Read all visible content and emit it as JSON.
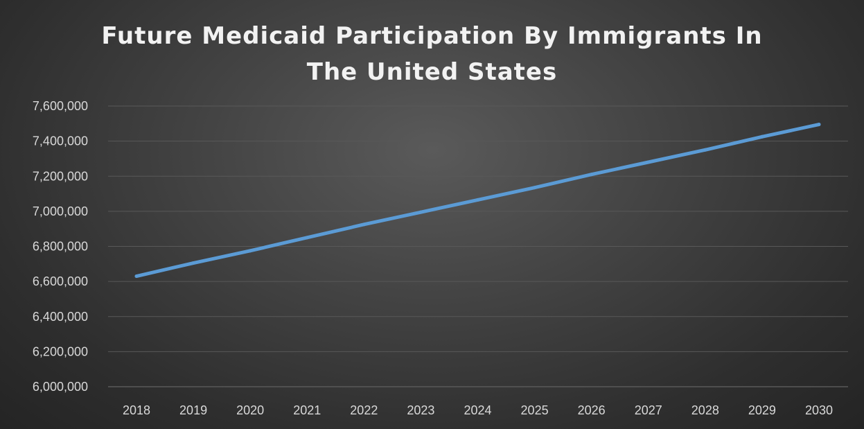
{
  "chart_data": {
    "type": "line",
    "title_lines": [
      "Future Medicaid Participation By Immigrants In",
      "The United States"
    ],
    "xlabel": "",
    "ylabel": "",
    "categories": [
      "2018",
      "2019",
      "2020",
      "2021",
      "2022",
      "2023",
      "2024",
      "2025",
      "2026",
      "2027",
      "2028",
      "2029",
      "2030"
    ],
    "series": [
      {
        "values": [
          6630000,
          6705000,
          6775000,
          6850000,
          6925000,
          6995000,
          7065000,
          7135000,
          7210000,
          7280000,
          7350000,
          7425000,
          7495000
        ]
      }
    ],
    "ylim": [
      6000000,
      7600000
    ],
    "yticks": [
      6000000,
      6200000,
      6400000,
      6600000,
      6800000,
      7000000,
      7200000,
      7400000,
      7600000
    ],
    "ytick_labels": [
      "6,000,000",
      "6,200,000",
      "6,400,000",
      "6,600,000",
      "6,800,000",
      "7,000,000",
      "7,200,000",
      "7,400,000",
      "7,600,000"
    ],
    "grid": true,
    "legend": "none",
    "colors": {
      "line": "#5b9bd5",
      "grid": "#595959",
      "text": "#d9d9d9",
      "title": "#f2f2f2"
    }
  }
}
